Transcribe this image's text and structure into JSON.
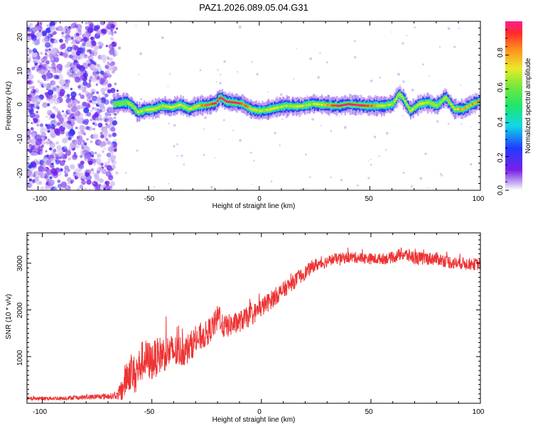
{
  "chart_data": [
    {
      "type": "heatmap",
      "title": "PAZ1.2026.089.05.04.G31",
      "xlabel": "Height of straight line (km)",
      "ylabel": "Frequency (Hz)",
      "xlim": [
        -105,
        100
      ],
      "ylim": [
        -25,
        25
      ],
      "xticks": [
        "-100",
        "-50",
        "0",
        "50",
        "100"
      ],
      "yticks": [
        "-20",
        "-10",
        "0",
        "10",
        "20"
      ],
      "noise_region_x": [
        -105,
        -65
      ],
      "ridge": {
        "x": [
          -65,
          -60,
          -57,
          -55,
          -52,
          -48,
          -44,
          -40,
          -36,
          -32,
          -28,
          -24,
          -20,
          -18,
          -15,
          -12,
          -8,
          -4,
          0,
          4,
          8,
          12,
          16,
          20,
          24,
          28,
          32,
          36,
          40,
          44,
          48,
          52,
          56,
          60,
          63,
          65,
          68,
          72,
          76,
          80,
          84,
          88,
          92,
          96,
          100
        ],
        "y": [
          0.5,
          1.0,
          -0.5,
          -2.0,
          -1.2,
          -1.0,
          0.0,
          -0.5,
          0.3,
          -1.0,
          0.0,
          0.2,
          0.8,
          2.5,
          1.2,
          1.0,
          0.6,
          -1.0,
          -1.5,
          -1.2,
          -0.5,
          0.0,
          -0.2,
          0.0,
          0.6,
          0.3,
          0.1,
          0.0,
          0.5,
          0.2,
          0.0,
          0.0,
          0.0,
          0.5,
          3.5,
          2.0,
          -1.5,
          0.5,
          1.0,
          0.0,
          2.5,
          -1.0,
          -1.0,
          0.5,
          1.5
        ]
      },
      "colorbar": {
        "label": "Normalized spectral amplitude",
        "range": [
          0,
          1
        ],
        "ticks": [
          "0.0",
          "0.2",
          "0.4",
          "0.6",
          "0.8"
        ]
      }
    },
    {
      "type": "line",
      "xlabel": "Height of straight line (km)",
      "ylabel": "SNR (10 * v/v)",
      "xlim": [
        -107,
        100
      ],
      "ylim": [
        0,
        3650
      ],
      "xticks": [
        "-100",
        "-50",
        "0",
        "50",
        "100"
      ],
      "yticks": [
        "1000",
        "2000",
        "3000"
      ],
      "series": [
        {
          "name": "SNR",
          "color": "#ee3333",
          "x": [
            -107,
            -90,
            -75,
            -66,
            -64,
            -62,
            -60,
            -58,
            -56,
            -54,
            -50,
            -46,
            -42,
            -38,
            -34,
            -30,
            -26,
            -22,
            -19,
            -18,
            -16,
            -12,
            -8,
            -4,
            0,
            4,
            8,
            12,
            16,
            20,
            24,
            28,
            32,
            36,
            40,
            44,
            48,
            52,
            56,
            60,
            64,
            68,
            72,
            76,
            80,
            84,
            88,
            92,
            96,
            100
          ],
          "values": [
            100,
            110,
            140,
            160,
            250,
            500,
            700,
            600,
            750,
            950,
            900,
            1050,
            1100,
            1100,
            1150,
            1350,
            1450,
            1650,
            1900,
            1650,
            1650,
            1700,
            1800,
            1900,
            2050,
            2200,
            2350,
            2500,
            2650,
            2800,
            2950,
            3000,
            3080,
            3100,
            3130,
            3120,
            3100,
            3090,
            3100,
            3120,
            3200,
            3150,
            3100,
            3100,
            3100,
            3050,
            3000,
            3000,
            2980,
            2980
          ],
          "noise": [
            40,
            40,
            60,
            70,
            250,
            380,
            420,
            430,
            430,
            440,
            420,
            400,
            380,
            360,
            330,
            300,
            280,
            270,
            300,
            260,
            250,
            240,
            230,
            220,
            210,
            200,
            190,
            170,
            160,
            150,
            140,
            130,
            120,
            120,
            120,
            120,
            120,
            120,
            120,
            120,
            140,
            150,
            150,
            140,
            140,
            140,
            140,
            130,
            130,
            130
          ]
        }
      ]
    }
  ]
}
